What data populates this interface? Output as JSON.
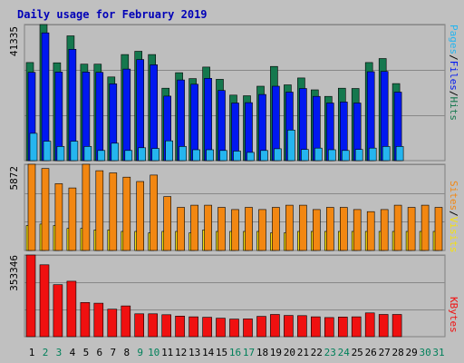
{
  "colors": {
    "outer_bg": "#c0c0c0",
    "plot_bg": "#bebebe",
    "frame_dark": "#808080",
    "gridline": "#888888",
    "title": "#0000b8",
    "weekday_label": "#000000",
    "weekend_label": "#00805a",
    "pages": "#25b5ef",
    "files": "#0018f0",
    "hits": "#15784e",
    "sites": "#f28712",
    "visits": "#f5e00f",
    "kbytes": "#f01010",
    "separator_slash": "#000000"
  },
  "chart_data": [
    {
      "type": "bar",
      "title": "Daily usage for February 2019",
      "y_axis_max_label": "41335",
      "ylim": [
        0,
        41335
      ],
      "grid": true,
      "legend": [
        {
          "name": "Pages",
          "color": "#25b5ef"
        },
        {
          "name": "Files",
          "color": "#0018f0"
        },
        {
          "name": "Hits",
          "color": "#15784e"
        }
      ],
      "categories": [
        "1",
        "2",
        "3",
        "4",
        "5",
        "6",
        "7",
        "8",
        "9",
        "10",
        "11",
        "12",
        "13",
        "14",
        "15",
        "16",
        "17",
        "18",
        "19",
        "20",
        "21",
        "22",
        "23",
        "24",
        "25",
        "26",
        "27",
        "28",
        "29",
        "30",
        "31"
      ],
      "weekend_days": [
        2,
        3,
        9,
        10,
        16,
        17,
        23,
        24,
        30,
        31
      ],
      "series": [
        {
          "name": "Hits",
          "values": [
            29800,
            41335,
            29700,
            37900,
            29300,
            29300,
            25400,
            32200,
            33200,
            32200,
            22000,
            26700,
            24900,
            28400,
            24700,
            19900,
            19700,
            22600,
            28600,
            23000,
            25100,
            21500,
            19500,
            22000,
            21900,
            29800,
            31000,
            23400,
            0,
            0,
            0
          ]
        },
        {
          "name": "Files",
          "values": [
            26800,
            38800,
            26900,
            33800,
            26900,
            26800,
            23300,
            27800,
            30700,
            29100,
            19600,
            24500,
            23200,
            25000,
            21300,
            17500,
            17600,
            20100,
            22600,
            20800,
            21900,
            19500,
            17500,
            17800,
            17500,
            27000,
            27100,
            20800,
            0,
            0,
            0
          ]
        },
        {
          "name": "Pages",
          "values": [
            8300,
            5900,
            4300,
            5900,
            4300,
            3100,
            5300,
            3100,
            3900,
            3700,
            6000,
            4300,
            3300,
            3300,
            3100,
            2900,
            2500,
            3100,
            3600,
            9300,
            3400,
            3800,
            3300,
            3100,
            3400,
            3800,
            4300,
            4300,
            0,
            0,
            0
          ]
        }
      ]
    },
    {
      "type": "bar",
      "title": "",
      "y_axis_max_label": "5872",
      "ylim": [
        0,
        5872
      ],
      "grid": true,
      "legend": [
        {
          "name": "Sites",
          "color": "#f28712"
        },
        {
          "name": "Visits",
          "color": "#f5e00f"
        }
      ],
      "categories": [
        "1",
        "2",
        "3",
        "4",
        "5",
        "6",
        "7",
        "8",
        "9",
        "10",
        "11",
        "12",
        "13",
        "14",
        "15",
        "16",
        "17",
        "18",
        "19",
        "20",
        "21",
        "22",
        "23",
        "24",
        "25",
        "26",
        "27",
        "28",
        "29",
        "30",
        "31"
      ],
      "series": [
        {
          "name": "Sites",
          "values": [
            5872,
            5579,
            4552,
            4259,
            5872,
            5433,
            5286,
            4993,
            4699,
            5139,
            3671,
            2936,
            3083,
            3083,
            2936,
            2790,
            2936,
            2790,
            2936,
            3083,
            3083,
            2790,
            2936,
            2936,
            2790,
            2643,
            2790,
            3083,
            2936,
            3083,
            2936
          ]
        },
        {
          "name": "Visits",
          "values": [
            1700,
            1800,
            1700,
            1500,
            1500,
            1400,
            1400,
            1300,
            1300,
            1200,
            1300,
            1300,
            1200,
            1400,
            1300,
            1300,
            1300,
            1300,
            1200,
            1200,
            1300,
            1300,
            1300,
            1300,
            1300,
            1300,
            1300,
            1300,
            1300,
            1300,
            1300
          ]
        }
      ]
    },
    {
      "type": "bar",
      "title": "",
      "y_axis_max_label": "353346",
      "ylim": [
        0,
        353346
      ],
      "grid": true,
      "legend": [
        {
          "name": "KBytes",
          "color": "#f01010"
        }
      ],
      "categories": [
        "1",
        "2",
        "3",
        "4",
        "5",
        "6",
        "7",
        "8",
        "9",
        "10",
        "11",
        "12",
        "13",
        "14",
        "15",
        "16",
        "17",
        "18",
        "19",
        "20",
        "21",
        "22",
        "23",
        "24",
        "25",
        "26",
        "27",
        "28",
        "29",
        "30",
        "31"
      ],
      "series": [
        {
          "name": "KBytes",
          "values": [
            353346,
            311000,
            225000,
            240000,
            148000,
            145000,
            119000,
            133000,
            99000,
            99000,
            95000,
            89000,
            86000,
            84000,
            80000,
            76000,
            77000,
            88000,
            96000,
            92000,
            91000,
            86000,
            83000,
            85000,
            86000,
            103000,
            96000,
            96000,
            0,
            0,
            0
          ]
        }
      ]
    }
  ]
}
